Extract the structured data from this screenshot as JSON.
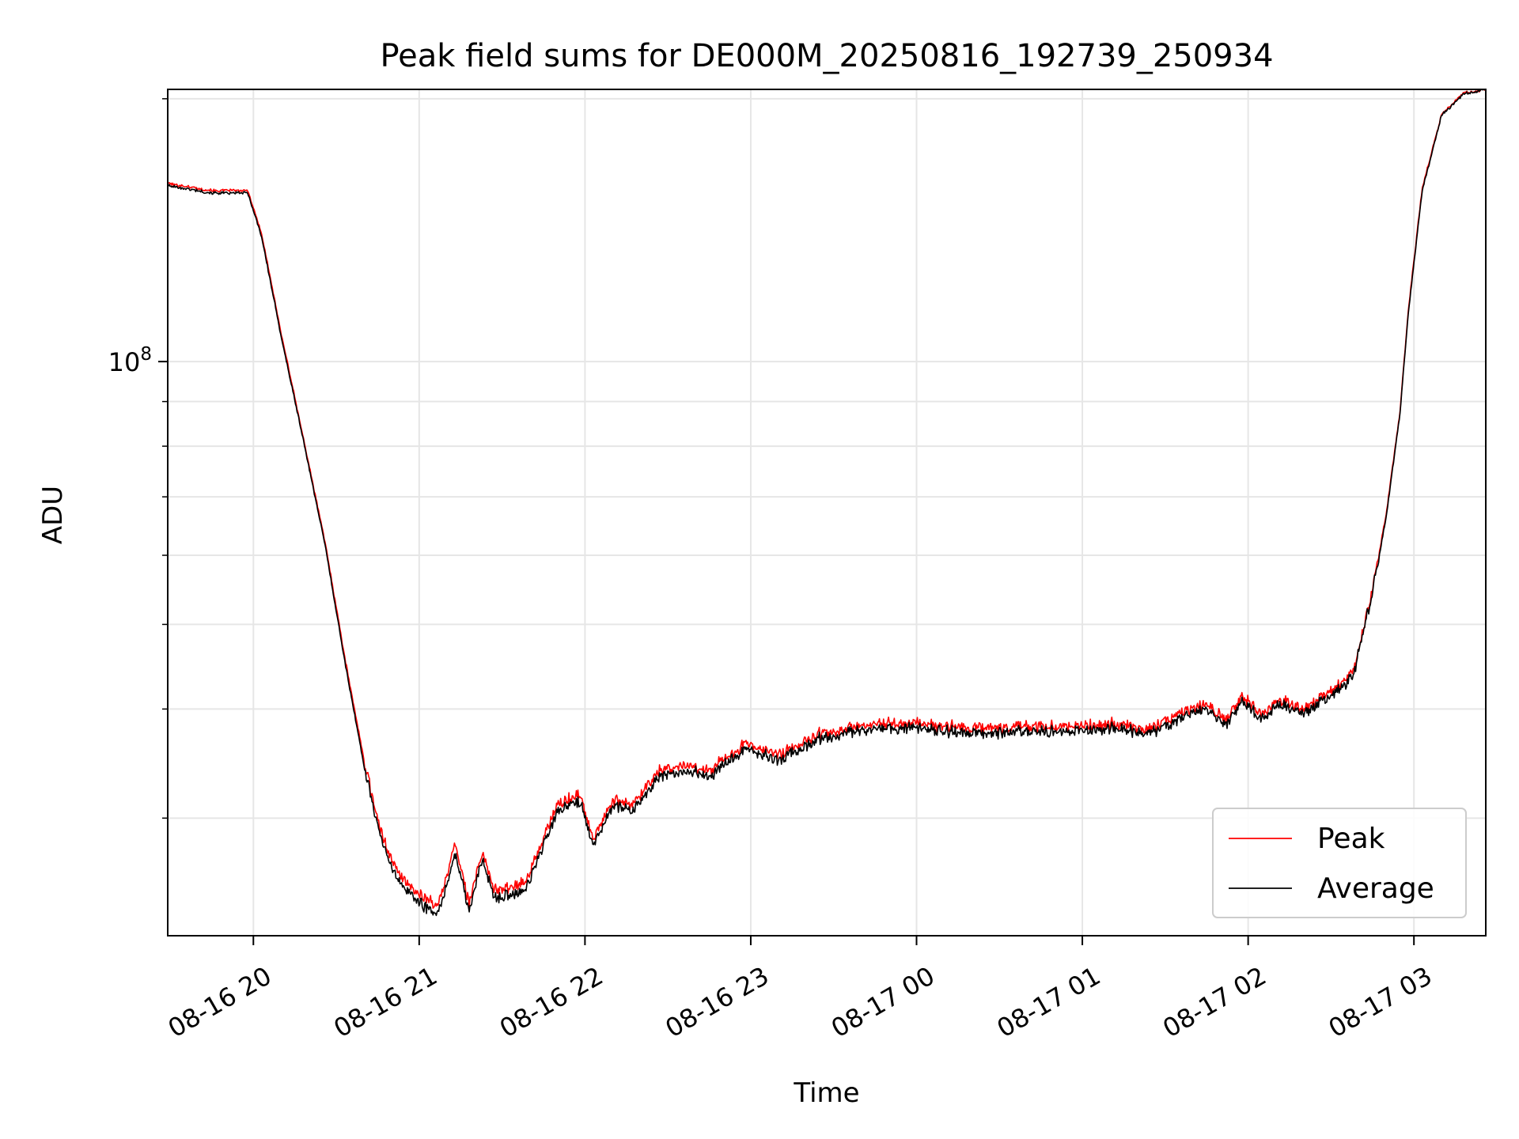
{
  "chart_data": {
    "type": "line",
    "title": "Peak field sums for DE000M_20250816_192739_250934",
    "xlabel": "Time",
    "ylabel": "ADU",
    "yscale": "log",
    "ylim": [
      22000000,
      205000000
    ],
    "xlim": [
      "08-16 19:29",
      "08-17 03:26"
    ],
    "grid": true,
    "legend_position": "lower-right",
    "x_ticks": [
      "08-16 20",
      "08-16 21",
      "08-16 22",
      "08-16 23",
      "08-17 00",
      "08-17 01",
      "08-17 02",
      "08-17 03"
    ],
    "y_tick_label": {
      "base": "10",
      "exponent": "8"
    },
    "colors": {
      "Peak": "#ff0000",
      "Average": "#000000"
    },
    "x": [
      "08-16 19:29",
      "08-16 19:45",
      "08-16 19:58",
      "08-16 20:03",
      "08-16 20:10",
      "08-16 20:18",
      "08-16 20:26",
      "08-16 20:33",
      "08-16 20:40",
      "08-16 20:46",
      "08-16 20:52",
      "08-16 21:00",
      "08-16 21:07",
      "08-16 21:13",
      "08-16 21:18",
      "08-16 21:23",
      "08-16 21:27",
      "08-16 21:33",
      "08-16 21:39",
      "08-16 21:45",
      "08-16 21:50",
      "08-16 21:58",
      "08-16 22:03",
      "08-16 22:10",
      "08-16 22:17",
      "08-16 22:27",
      "08-16 22:38",
      "08-16 22:45",
      "08-16 22:58",
      "08-16 23:10",
      "08-16 23:25",
      "08-16 23:45",
      "08-17 00:00",
      "08-17 00:20",
      "08-17 00:40",
      "08-17 01:00",
      "08-17 01:10",
      "08-17 01:25",
      "08-17 01:35",
      "08-17 01:45",
      "08-17 01:52",
      "08-17 01:58",
      "08-17 02:05",
      "08-17 02:12",
      "08-17 02:20",
      "08-17 02:30",
      "08-17 02:38",
      "08-17 02:45",
      "08-17 02:50",
      "08-17 02:55",
      "08-17 02:58",
      "08-17 03:03",
      "08-17 03:10",
      "08-17 03:18",
      "08-17 03:26"
    ],
    "series": [
      {
        "name": "Peak",
        "values": [
          160000000,
          157000000,
          157000000,
          140000000,
          108000000,
          82000000,
          62000000,
          46000000,
          35000000,
          29000000,
          26000000,
          24500000,
          23800000,
          28000000,
          24000000,
          27500000,
          24800000,
          25000000,
          25500000,
          28500000,
          31000000,
          32000000,
          28500000,
          31500000,
          31000000,
          34000000,
          34500000,
          34000000,
          36500000,
          35500000,
          37500000,
          38500000,
          38500000,
          38000000,
          38200000,
          38300000,
          38500000,
          38000000,
          39500000,
          40500000,
          39000000,
          41500000,
          39500000,
          41000000,
          40000000,
          42000000,
          44000000,
          55000000,
          67000000,
          88000000,
          115000000,
          158000000,
          192000000,
          203000000,
          205000000
        ]
      },
      {
        "name": "Average",
        "values": [
          159000000,
          156000000,
          156000000,
          139000000,
          107000000,
          81500000,
          61500000,
          45500000,
          34500000,
          28500000,
          25500000,
          24000000,
          23300000,
          27300000,
          23500000,
          27000000,
          24300000,
          24500000,
          25000000,
          28000000,
          30500000,
          31500000,
          28000000,
          31000000,
          30500000,
          33500000,
          34000000,
          33500000,
          36000000,
          35000000,
          37000000,
          38000000,
          38000000,
          37500000,
          37700000,
          37800000,
          38000000,
          37500000,
          39000000,
          40000000,
          38500000,
          41000000,
          39000000,
          40500000,
          39500000,
          41500000,
          43500000,
          54500000,
          66500000,
          87500000,
          114000000,
          157000000,
          191500000,
          202500000,
          205000000
        ]
      }
    ]
  }
}
